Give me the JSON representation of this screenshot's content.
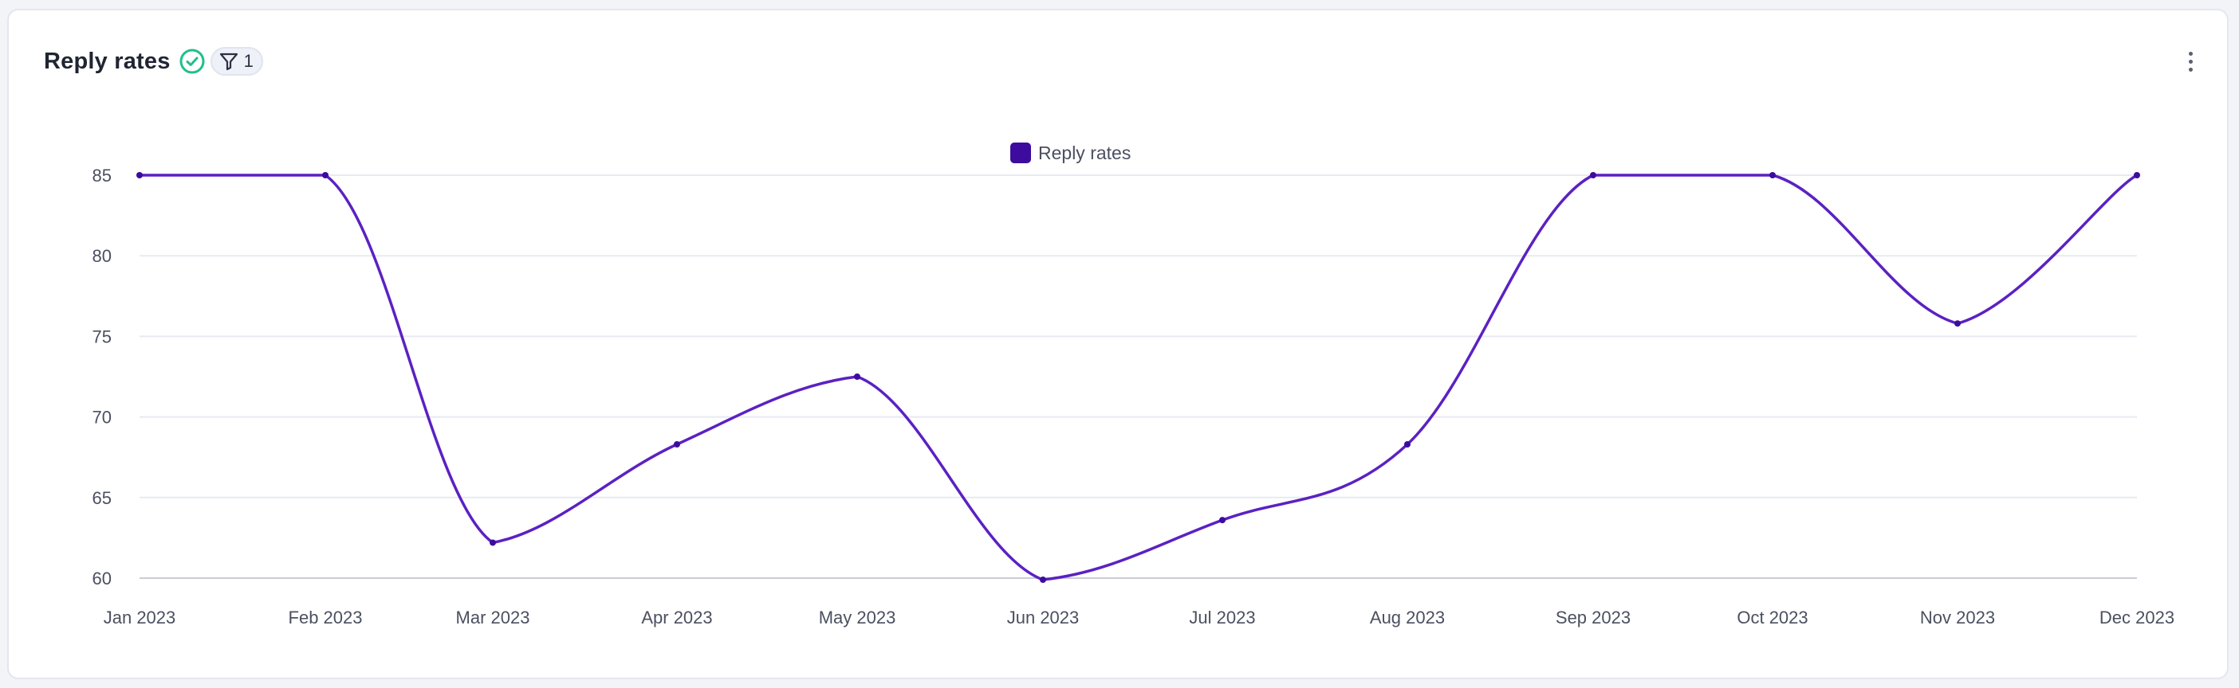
{
  "card": {
    "title": "Reply rates",
    "filter_count": "1"
  },
  "icons": {
    "verified": "check-circle-icon",
    "filter": "filter-funnel-icon",
    "menu": "more-vertical-icon"
  },
  "colors": {
    "series": "#5b21c2",
    "legend_swatch": "#3d0c9e",
    "verified": "#20c08a",
    "grid": "#e8eaf0"
  },
  "chart_data": {
    "type": "line",
    "legend": {
      "label": "Reply rates",
      "position": "top-center"
    },
    "categories": [
      "Jan 2023",
      "Feb 2023",
      "Mar 2023",
      "Apr 2023",
      "May 2023",
      "Jun 2023",
      "Jul 2023",
      "Aug 2023",
      "Sep 2023",
      "Oct 2023",
      "Nov 2023",
      "Dec 2023"
    ],
    "series": [
      {
        "name": "Reply rates",
        "values": [
          85,
          85,
          62.2,
          68.3,
          72.5,
          59.9,
          63.6,
          68.3,
          85,
          85,
          75.8,
          85
        ]
      }
    ],
    "yticks": [
      60,
      65,
      70,
      75,
      80,
      85
    ],
    "ylim": [
      60,
      85
    ],
    "grid": true,
    "xlabel": "",
    "ylabel": ""
  }
}
